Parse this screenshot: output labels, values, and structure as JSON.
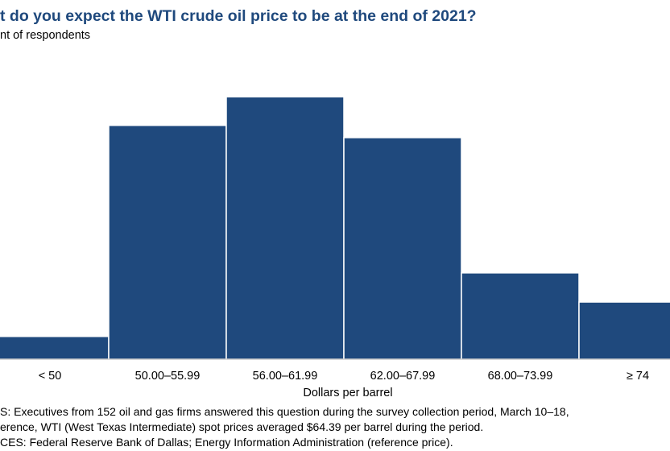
{
  "title": "t do you expect the WTI crude oil price to be at the end of 2021?",
  "subtitle": "nt of respondents",
  "chart_data": {
    "type": "bar",
    "title": "t do you expect the WTI crude oil price to be at the end of 2021?",
    "ylabel": "nt of respondents",
    "xlabel": "Dollars per barrel",
    "categories": [
      "< 50",
      "50.00–55.99",
      "56.00–61.99",
      "62.00–67.99",
      "68.00–73.99",
      "≥ 74"
    ],
    "values": [
      3.9,
      40.1,
      45.0,
      38.0,
      14.8,
      9.8
    ],
    "ylim": [
      0,
      50
    ],
    "grid": false,
    "bar_color": "#1f497d"
  },
  "notes": [
    "S: Executives from 152 oil and gas firms answered this question during the survey collection period, March 10–18,",
    "erence, WTI (West Texas Intermediate) spot prices averaged $64.39 per barrel during the period.",
    "CES: Federal Reserve Bank of Dallas; Energy Information Administration (reference price)."
  ]
}
